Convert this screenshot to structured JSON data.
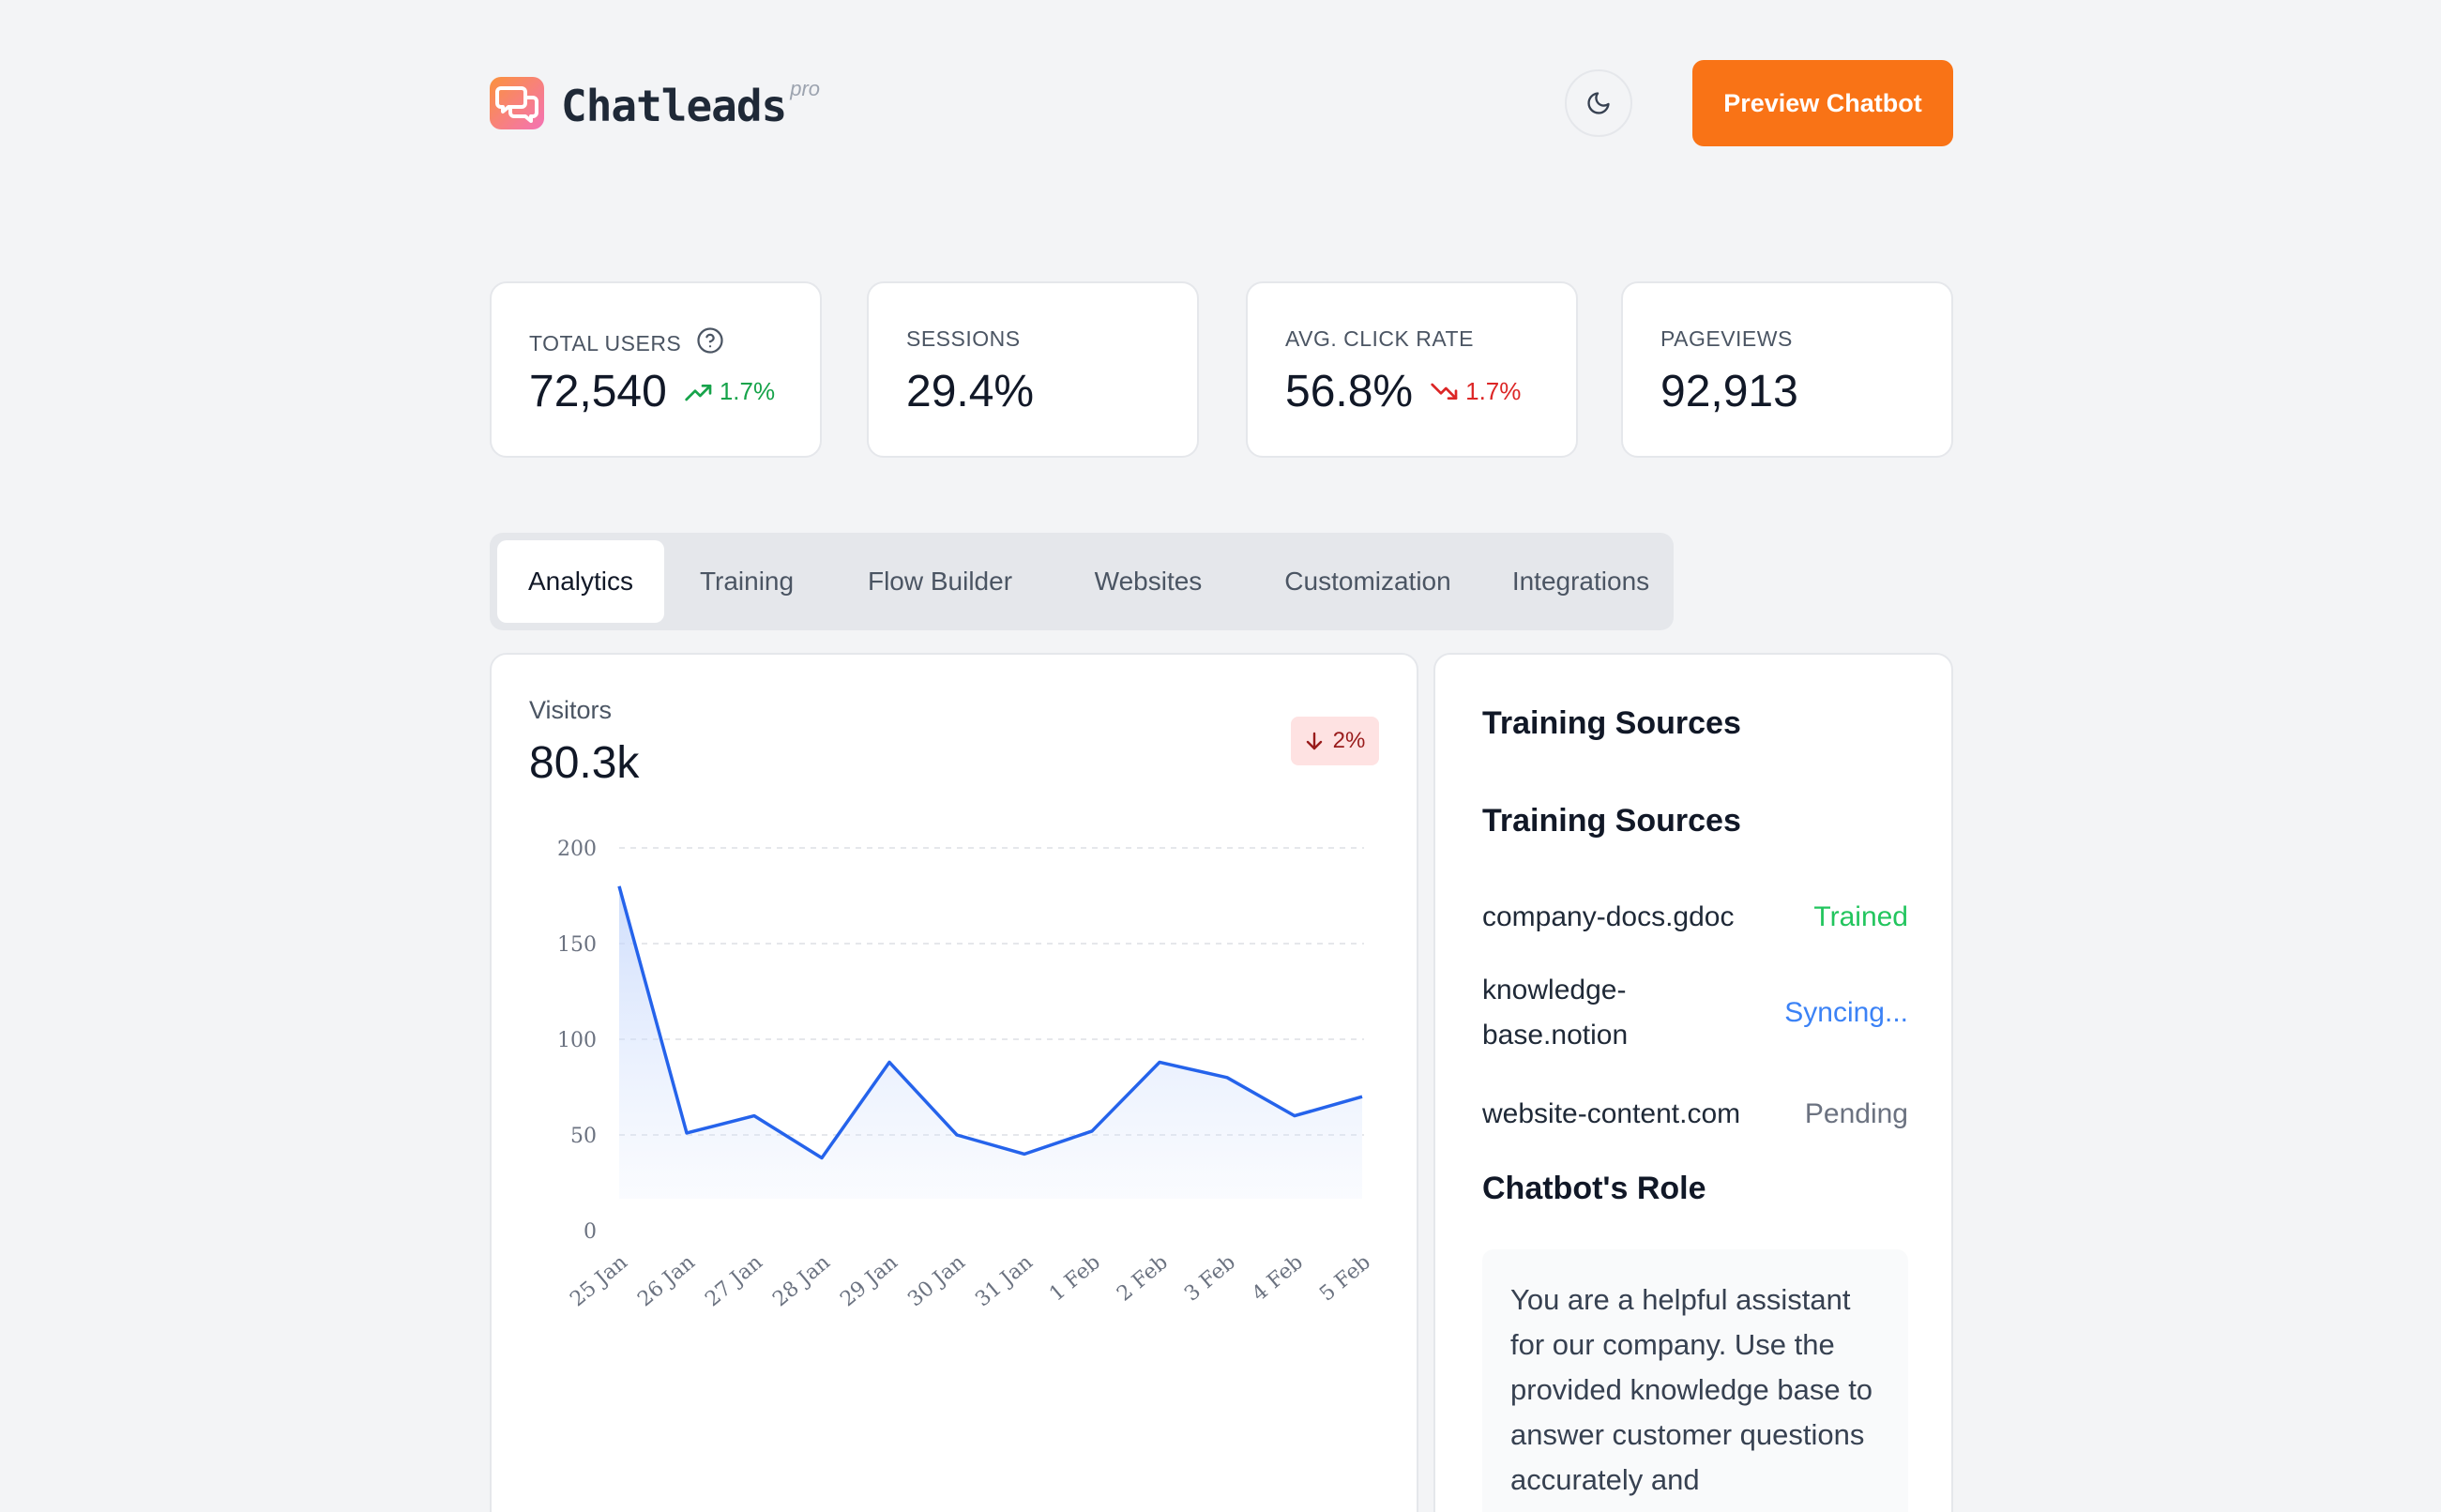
{
  "header": {
    "logo_text": "Chatleads",
    "logo_sup": "pro",
    "theme_icon": "moon-icon",
    "preview_label": "Preview Chatbot",
    "accent": "#f97316"
  },
  "stats": [
    {
      "label": "TOTAL USERS",
      "value": "72,540",
      "delta": "1.7%",
      "trend": "up",
      "help": true
    },
    {
      "label": "SESSIONS",
      "value": "29.4%",
      "delta": "",
      "trend": ""
    },
    {
      "label": "AVG. CLICK RATE",
      "value": "56.8%",
      "delta": "1.7%",
      "trend": "down"
    },
    {
      "label": "PAGEVIEWS",
      "value": "92,913",
      "delta": "",
      "trend": ""
    }
  ],
  "tabs": [
    {
      "label": "Analytics",
      "active": true
    },
    {
      "label": "Training"
    },
    {
      "label": "Flow Builder"
    },
    {
      "label": "Websites"
    },
    {
      "label": "Customization"
    },
    {
      "label": "Integrations"
    }
  ],
  "visitors": {
    "label": "Visitors",
    "value": "80.3k",
    "badge": "2%"
  },
  "chart_data": {
    "type": "area",
    "x": [
      "25 Jan",
      "26 Jan",
      "27 Jan",
      "28 Jan",
      "29 Jan",
      "30 Jan",
      "31 Jan",
      "1 Feb",
      "2 Feb",
      "3 Feb",
      "4 Feb",
      "5 Feb"
    ],
    "series": [
      {
        "values": [
          180,
          51,
          60,
          38,
          88,
          50,
          40,
          52,
          88,
          80,
          60,
          70
        ]
      }
    ],
    "yticks": [
      "0",
      "50",
      "100",
      "150",
      "200"
    ],
    "ylim": [
      0,
      200
    ],
    "grid": true,
    "line_color": "#2563eb",
    "title": "",
    "xlabel": "",
    "ylabel": ""
  },
  "training": {
    "heading1": "Training Sources",
    "heading2": "Training Sources",
    "sources": [
      {
        "name": "company-docs.gdoc",
        "status": "Trained"
      },
      {
        "name_line1": "knowledge-",
        "name_line2": "base.notion",
        "status": "Syncing..."
      },
      {
        "name": "website-content.com",
        "status": "Pending"
      }
    ],
    "role_heading": "Chatbot's Role",
    "role_text": "You are a helpful assistant for our company. Use the provided knowledge base to answer customer questions accurately and"
  }
}
